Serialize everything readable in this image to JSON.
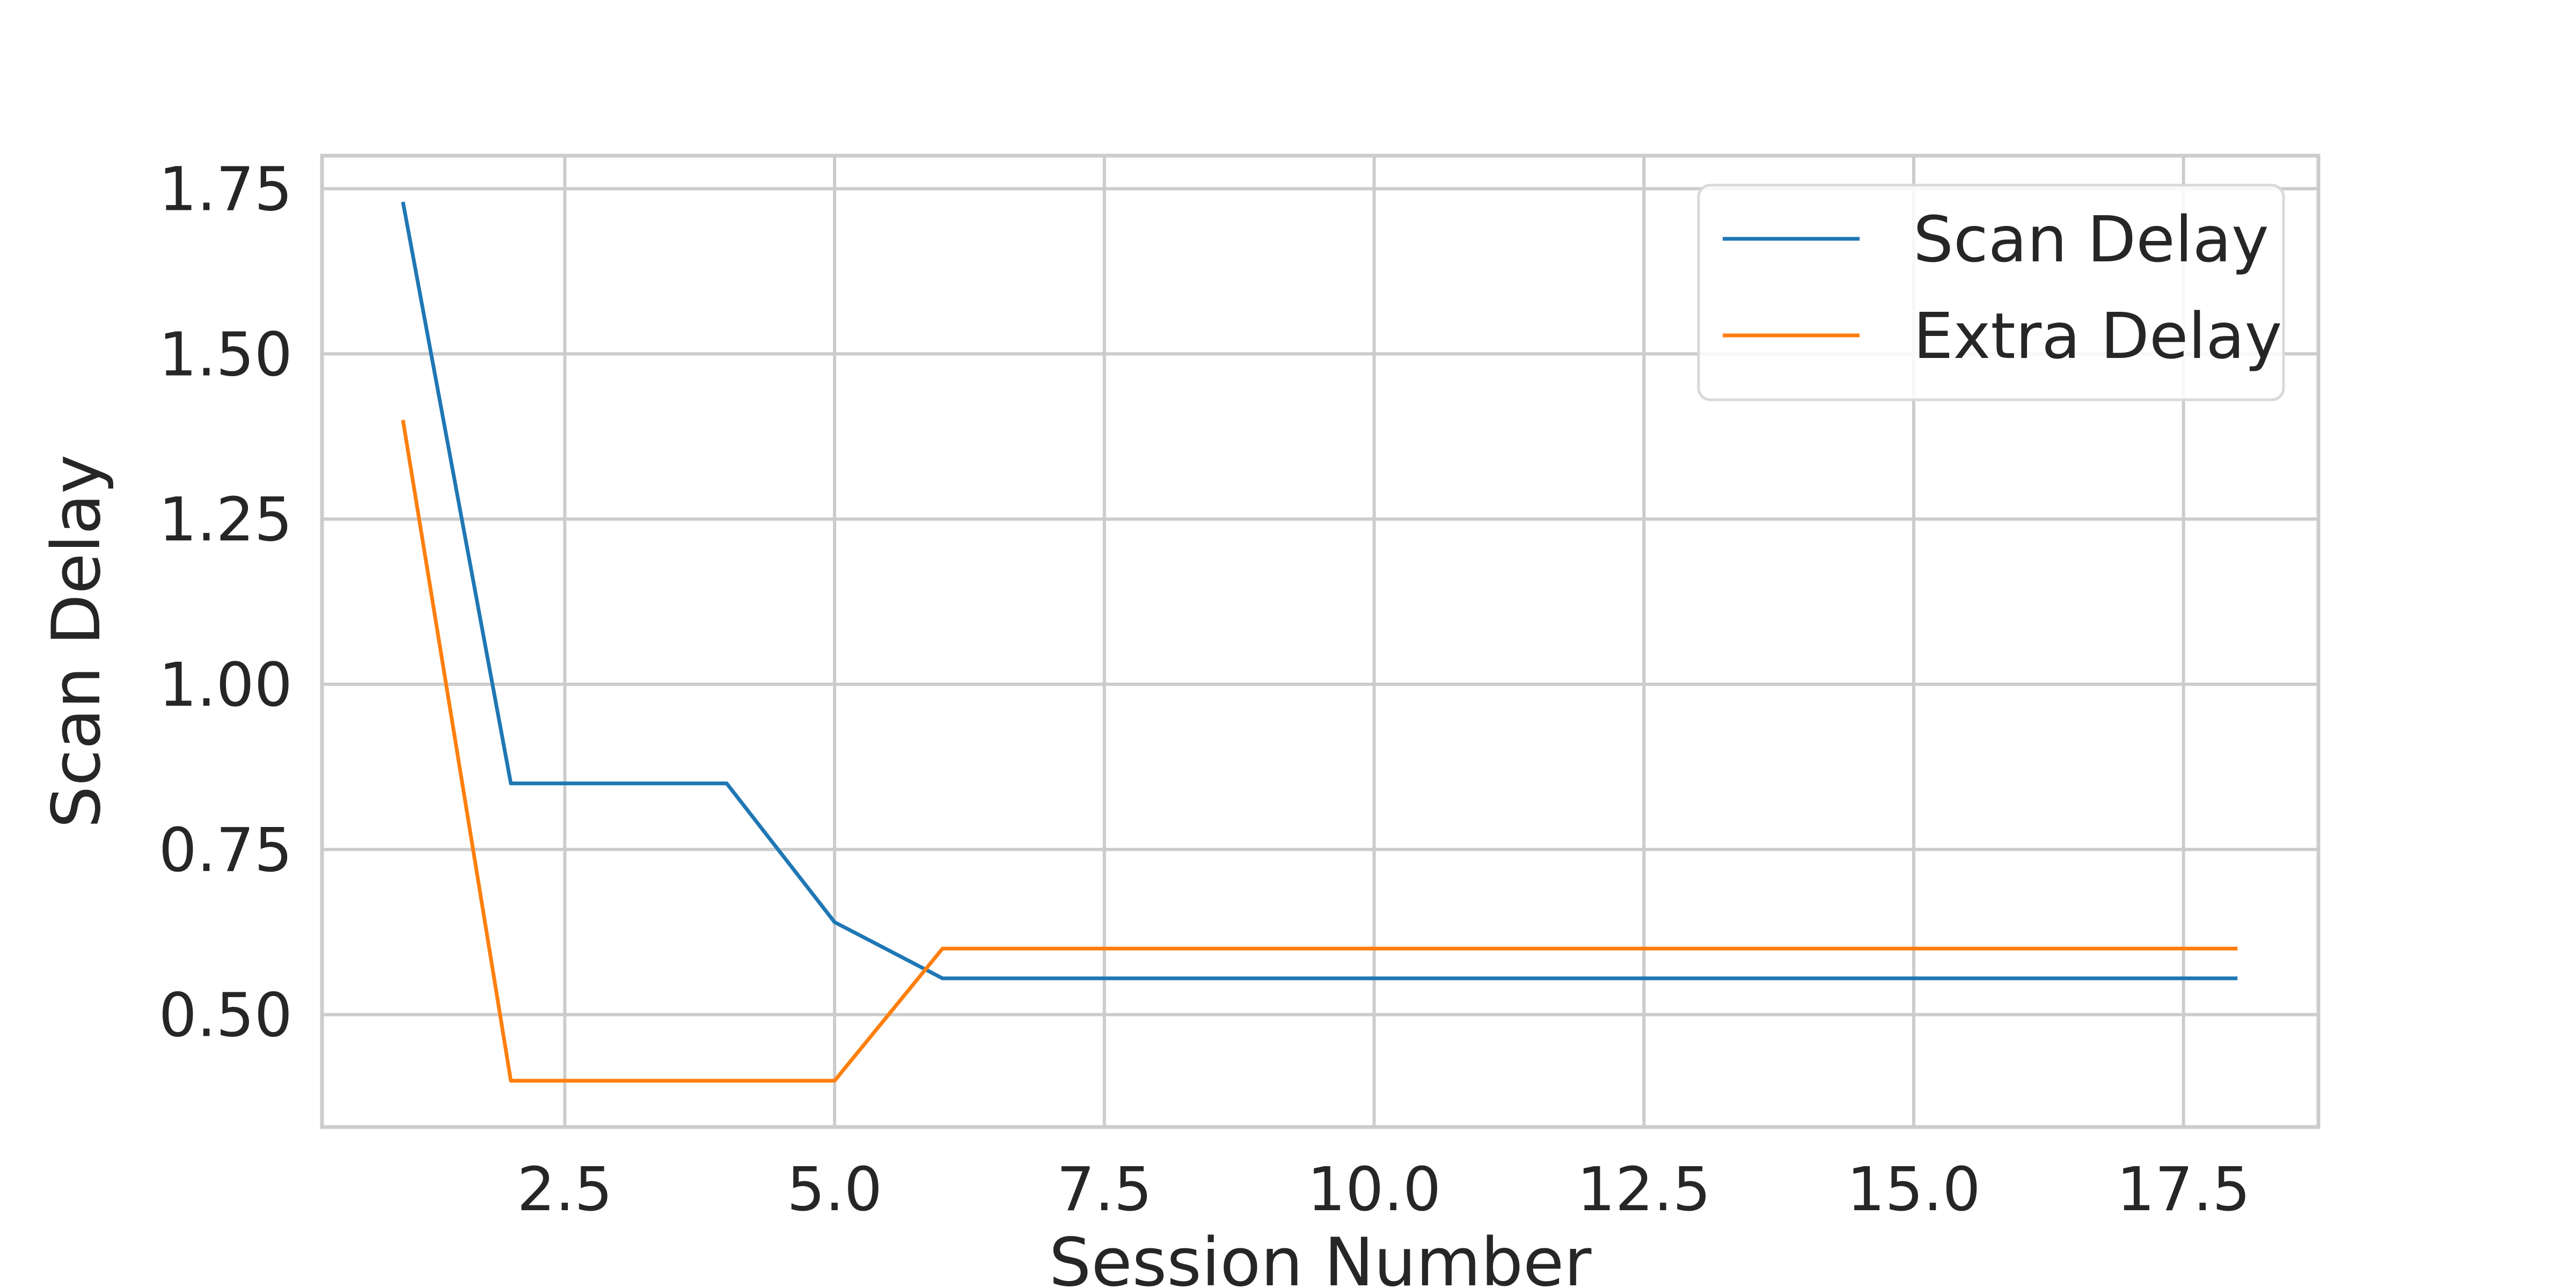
{
  "chart_data": {
    "type": "line",
    "title": "",
    "xlabel": "Session Number",
    "ylabel": "Scan Delay",
    "xlim": [
      0.25,
      18.75
    ],
    "ylim": [
      0.33,
      1.8
    ],
    "xticks": [
      2.5,
      5.0,
      7.5,
      10.0,
      12.5,
      15.0,
      17.5
    ],
    "xtick_labels": [
      "2.5",
      "5.0",
      "7.5",
      "10.0",
      "12.5",
      "15.0",
      "17.5"
    ],
    "yticks": [
      0.5,
      0.75,
      1.0,
      1.25,
      1.5,
      1.75
    ],
    "ytick_labels": [
      "0.50",
      "0.75",
      "1.00",
      "1.25",
      "1.50",
      "1.75"
    ],
    "grid": true,
    "legend_position": "top-right",
    "x": [
      1,
      2,
      3,
      4,
      5,
      6,
      7,
      8,
      9,
      10,
      11,
      12,
      13,
      14,
      15,
      16,
      17,
      18
    ],
    "series": [
      {
        "name": "Scan Delay",
        "color": "#1f77b4",
        "values": [
          1.73,
          0.85,
          0.85,
          0.85,
          0.64,
          0.555,
          0.555,
          0.555,
          0.555,
          0.555,
          0.555,
          0.555,
          0.555,
          0.555,
          0.555,
          0.555,
          0.555,
          0.555
        ]
      },
      {
        "name": "Extra Delay",
        "color": "#ff7f0e",
        "values": [
          1.4,
          0.4,
          0.4,
          0.4,
          0.4,
          0.6,
          0.6,
          0.6,
          0.6,
          0.6,
          0.6,
          0.6,
          0.6,
          0.6,
          0.6,
          0.6,
          0.6,
          0.6
        ]
      }
    ]
  }
}
